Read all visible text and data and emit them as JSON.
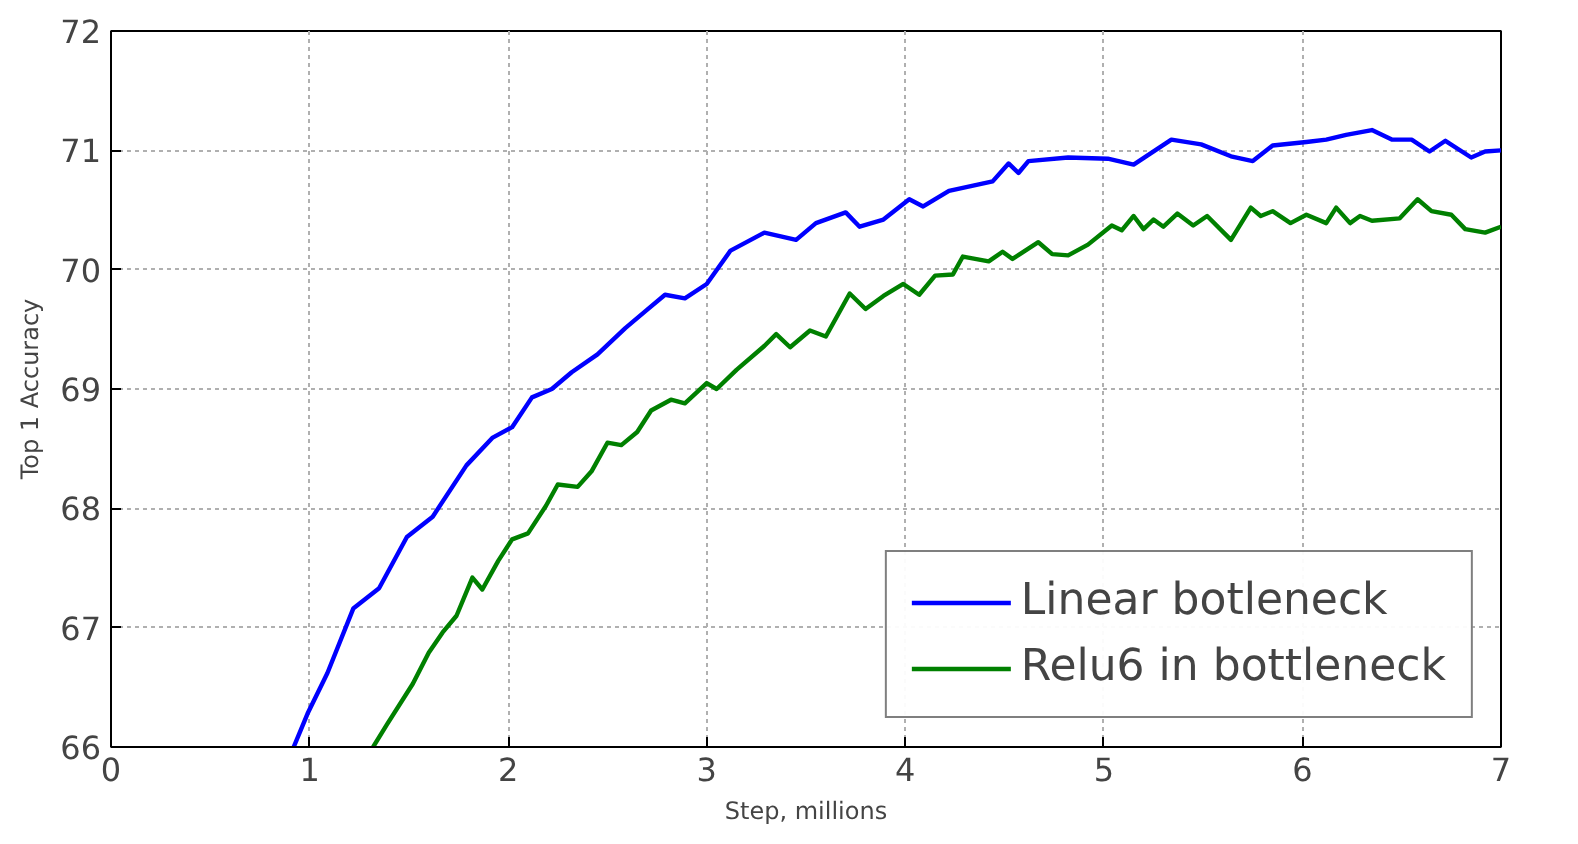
{
  "chart_data": {
    "type": "line",
    "xlabel": "Step, millions",
    "ylabel": "Top 1 Accuracy",
    "xlim": [
      0,
      7
    ],
    "ylim": [
      66,
      72
    ],
    "xticks": [
      0,
      1,
      2,
      3,
      4,
      5,
      6,
      7
    ],
    "yticks": [
      66,
      67,
      68,
      69,
      70,
      71,
      72
    ],
    "grid": true,
    "legend": "bottom right",
    "line_style": "solid",
    "marker": "none",
    "series": [
      {
        "name": "Linear botleneck",
        "color": "#0000ff",
        "x": [
          0.92,
          0.99,
          1.09,
          1.22,
          1.35,
          1.49,
          1.62,
          1.79,
          1.92,
          2.02,
          2.12,
          2.22,
          2.32,
          2.45,
          2.59,
          2.69,
          2.79,
          2.89,
          3.0,
          3.12,
          3.29,
          3.45,
          3.55,
          3.7,
          3.77,
          3.89,
          4.02,
          4.09,
          4.22,
          4.44,
          4.52,
          4.57,
          4.62,
          4.82,
          5.02,
          5.15,
          5.34,
          5.49,
          5.64,
          5.75,
          5.85,
          6.02,
          6.12,
          6.22,
          6.35,
          6.45,
          6.55,
          6.64,
          6.72,
          6.85,
          6.92,
          7.0
        ],
        "values": [
          66.0,
          66.28,
          66.62,
          67.16,
          67.33,
          67.76,
          67.93,
          68.36,
          68.59,
          68.68,
          68.93,
          69.0,
          69.14,
          69.29,
          69.51,
          69.65,
          69.79,
          69.76,
          69.88,
          70.16,
          70.31,
          70.25,
          70.39,
          70.48,
          70.36,
          70.42,
          70.59,
          70.53,
          70.66,
          70.74,
          70.89,
          70.81,
          70.91,
          70.94,
          70.93,
          70.88,
          71.09,
          71.05,
          70.95,
          70.91,
          71.04,
          71.07,
          71.09,
          71.13,
          71.17,
          71.09,
          71.09,
          70.99,
          71.08,
          70.94,
          70.99,
          71.0
        ]
      },
      {
        "name": "Relu6 in bottleneck",
        "color": "#008000",
        "x": [
          1.32,
          1.39,
          1.52,
          1.6,
          1.67,
          1.74,
          1.82,
          1.87,
          1.95,
          2.02,
          2.1,
          2.19,
          2.25,
          2.35,
          2.42,
          2.5,
          2.57,
          2.65,
          2.72,
          2.82,
          2.89,
          3.0,
          3.05,
          3.15,
          3.29,
          3.35,
          3.42,
          3.52,
          3.6,
          3.72,
          3.8,
          3.89,
          3.99,
          4.07,
          4.15,
          4.24,
          4.29,
          4.42,
          4.49,
          4.54,
          4.67,
          4.74,
          4.82,
          4.92,
          5.04,
          5.09,
          5.15,
          5.2,
          5.25,
          5.3,
          5.37,
          5.45,
          5.52,
          5.64,
          5.74,
          5.79,
          5.85,
          5.94,
          6.02,
          6.12,
          6.17,
          6.24,
          6.29,
          6.35,
          6.49,
          6.58,
          6.65,
          6.75,
          6.82,
          6.92,
          7.0
        ],
        "values": [
          66.0,
          66.19,
          66.53,
          66.79,
          66.96,
          67.1,
          67.42,
          67.32,
          67.56,
          67.74,
          67.79,
          68.02,
          68.2,
          68.18,
          68.31,
          68.55,
          68.53,
          68.64,
          68.82,
          68.91,
          68.88,
          69.05,
          69.0,
          69.16,
          69.36,
          69.46,
          69.35,
          69.49,
          69.44,
          69.8,
          69.67,
          69.78,
          69.88,
          69.79,
          69.95,
          69.96,
          70.11,
          70.07,
          70.15,
          70.09,
          70.23,
          70.13,
          70.12,
          70.21,
          70.37,
          70.33,
          70.45,
          70.34,
          70.42,
          70.36,
          70.47,
          70.37,
          70.45,
          70.25,
          70.52,
          70.45,
          70.49,
          70.39,
          70.46,
          70.39,
          70.52,
          70.39,
          70.45,
          70.41,
          70.43,
          70.59,
          70.49,
          70.46,
          70.34,
          70.31,
          70.36
        ]
      }
    ]
  }
}
